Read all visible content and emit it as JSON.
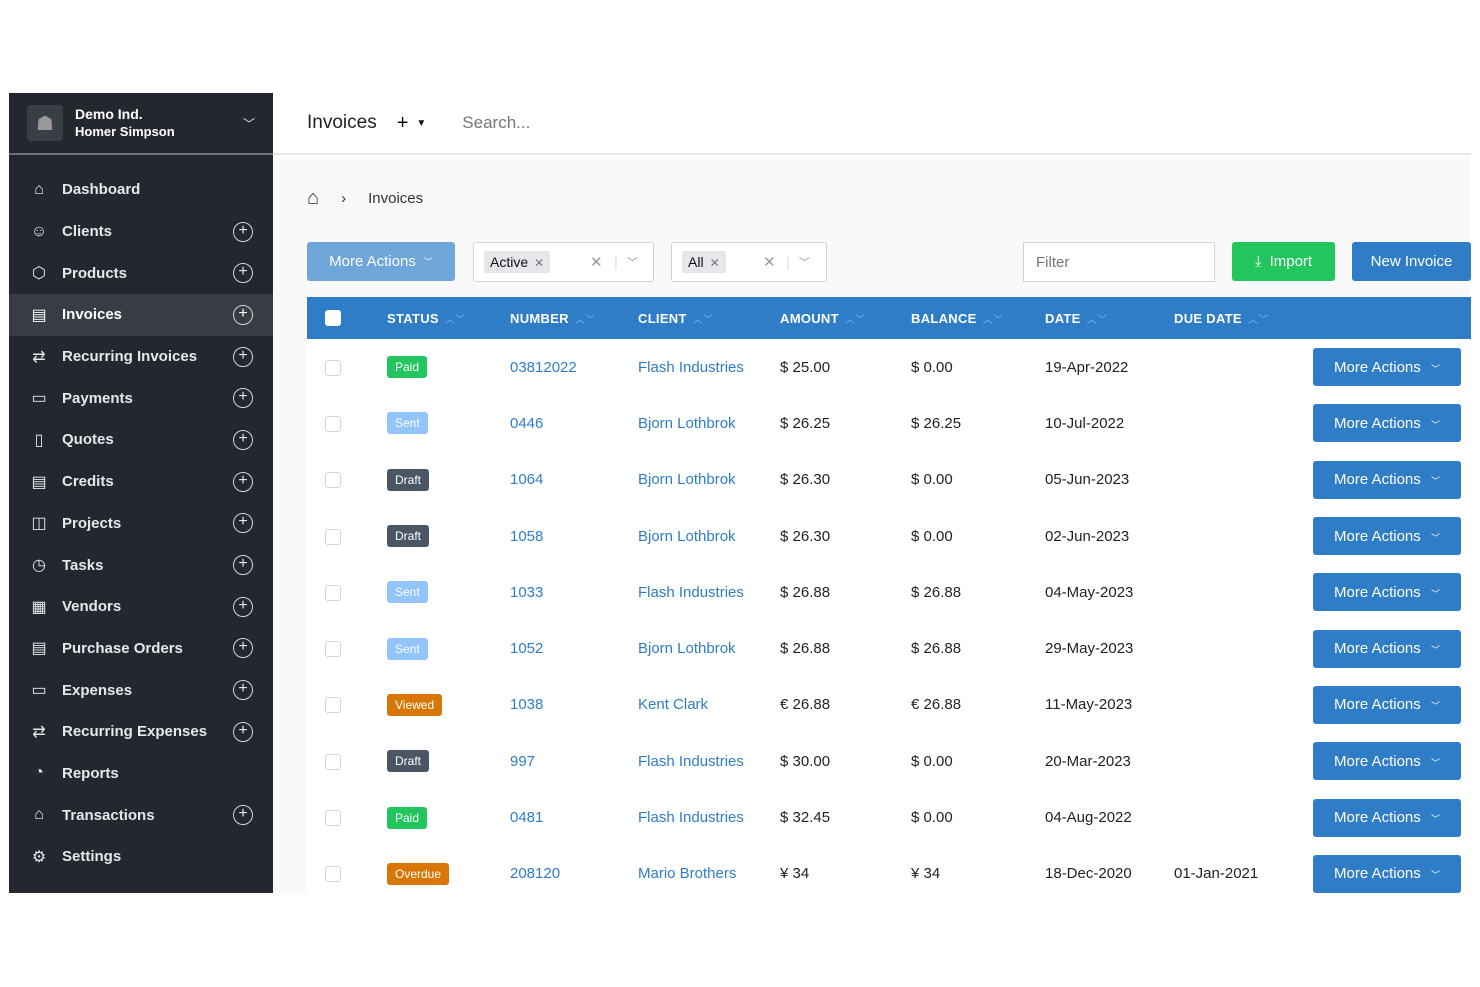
{
  "account": {
    "company": "Demo Ind.",
    "user": "Homer Simpson"
  },
  "sidebar": {
    "items": [
      {
        "label": "Dashboard",
        "icon": "home-icon",
        "glyph": "⌂",
        "plus": false
      },
      {
        "label": "Clients",
        "icon": "users-icon",
        "glyph": "☺",
        "plus": true
      },
      {
        "label": "Products",
        "icon": "cube-icon",
        "glyph": "⬡",
        "plus": true
      },
      {
        "label": "Invoices",
        "icon": "file-text-icon",
        "glyph": "▤",
        "plus": true,
        "active": true
      },
      {
        "label": "Recurring Invoices",
        "icon": "repeat-icon",
        "glyph": "⇄",
        "plus": true
      },
      {
        "label": "Payments",
        "icon": "credit-card-icon",
        "glyph": "▭",
        "plus": true
      },
      {
        "label": "Quotes",
        "icon": "file-icon",
        "glyph": "▯",
        "plus": true
      },
      {
        "label": "Credits",
        "icon": "file-text-icon",
        "glyph": "▤",
        "plus": true
      },
      {
        "label": "Projects",
        "icon": "briefcase-icon",
        "glyph": "◫",
        "plus": true
      },
      {
        "label": "Tasks",
        "icon": "clock-icon",
        "glyph": "◷",
        "plus": true
      },
      {
        "label": "Vendors",
        "icon": "building-icon",
        "glyph": "▦",
        "plus": true
      },
      {
        "label": "Purchase Orders",
        "icon": "file-text-icon",
        "glyph": "▤",
        "plus": true
      },
      {
        "label": "Expenses",
        "icon": "wallet-icon",
        "glyph": "▭",
        "plus": true
      },
      {
        "label": "Recurring Expenses",
        "icon": "repeat-icon",
        "glyph": "⇄",
        "plus": true
      },
      {
        "label": "Reports",
        "icon": "pie-chart-icon",
        "glyph": "◔",
        "plus": false
      },
      {
        "label": "Transactions",
        "icon": "bank-icon",
        "glyph": "⌂",
        "plus": true
      },
      {
        "label": "Settings",
        "icon": "gear-icon",
        "glyph": "⚙",
        "plus": false
      }
    ]
  },
  "header": {
    "title": "Invoices",
    "add": "+",
    "search_placeholder": "Search..."
  },
  "breadcrumb": {
    "current": "Invoices"
  },
  "toolbar": {
    "more_actions": "More Actions",
    "status_filter": "Active",
    "type_filter": "All",
    "filter_placeholder": "Filter",
    "import": "Import",
    "new_invoice": "New Invoice"
  },
  "colors": {
    "primary": "#2f7dc6",
    "success": "#22c55e",
    "Paid": "#22c55e",
    "Sent": "#93c5fd",
    "Draft": "#4b5563",
    "Viewed": "#d97706",
    "Overdue": "#d97706"
  },
  "table": {
    "columns": [
      "STATUS",
      "NUMBER",
      "CLIENT",
      "AMOUNT",
      "BALANCE",
      "DATE",
      "DUE DATE"
    ],
    "action_label": "More Actions",
    "rows": [
      {
        "status": "Paid",
        "number": "03812022",
        "client": "Flash Industries",
        "amount": "$ 25.00",
        "balance": "$ 0.00",
        "date": "19-Apr-2022",
        "due": ""
      },
      {
        "status": "Sent",
        "number": "0446",
        "client": "Bjorn Lothbrok",
        "amount": "$ 26.25",
        "balance": "$ 26.25",
        "date": "10-Jul-2022",
        "due": ""
      },
      {
        "status": "Draft",
        "number": "1064",
        "client": "Bjorn Lothbrok",
        "amount": "$ 26.30",
        "balance": "$ 0.00",
        "date": "05-Jun-2023",
        "due": ""
      },
      {
        "status": "Draft",
        "number": "1058",
        "client": "Bjorn Lothbrok",
        "amount": "$ 26.30",
        "balance": "$ 0.00",
        "date": "02-Jun-2023",
        "due": ""
      },
      {
        "status": "Sent",
        "number": "1033",
        "client": "Flash Industries",
        "amount": "$ 26.88",
        "balance": "$ 26.88",
        "date": "04-May-2023",
        "due": ""
      },
      {
        "status": "Sent",
        "number": "1052",
        "client": "Bjorn Lothbrok",
        "amount": "$ 26.88",
        "balance": "$ 26.88",
        "date": "29-May-2023",
        "due": ""
      },
      {
        "status": "Viewed",
        "number": "1038",
        "client": "Kent Clark",
        "amount": "€ 26.88",
        "balance": "€ 26.88",
        "date": "11-May-2023",
        "due": ""
      },
      {
        "status": "Draft",
        "number": "997",
        "client": "Flash Industries",
        "amount": "$ 30.00",
        "balance": "$ 0.00",
        "date": "20-Mar-2023",
        "due": ""
      },
      {
        "status": "Paid",
        "number": "0481",
        "client": "Flash Industries",
        "amount": "$ 32.45",
        "balance": "$ 0.00",
        "date": "04-Aug-2022",
        "due": ""
      },
      {
        "status": "Overdue",
        "number": "208120",
        "client": "Mario Brothers",
        "amount": "¥ 34",
        "balance": "¥ 34",
        "date": "18-Dec-2020",
        "due": "01-Jan-2021"
      }
    ]
  }
}
